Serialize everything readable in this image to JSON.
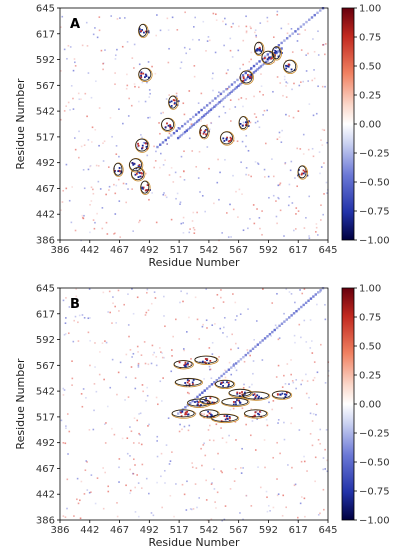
{
  "chart_data": [
    {
      "type": "heatmap",
      "panel_label": "A",
      "xlabel": "Residue Number",
      "ylabel": "Residue Number",
      "xlim": [
        386,
        645
      ],
      "ylim": [
        386,
        645
      ],
      "x_ticks": [
        "386",
        "442",
        "467",
        "492",
        "517",
        "542",
        "567",
        "592",
        "617",
        "645"
      ],
      "y_ticks": [
        "386",
        "442",
        "467",
        "492",
        "517",
        "542",
        "567",
        "592",
        "617",
        "645"
      ],
      "colorbar": {
        "min": -1.0,
        "max": 1.0,
        "ticks": [
          "1.00",
          "0.75",
          "0.50",
          "0.25",
          "0.00",
          "−0.25",
          "−0.50",
          "−0.75",
          "−1.00"
        ],
        "colors": [
          "#8b0000",
          "#e23b2a",
          "#f7b6a0",
          "#ffffff",
          "#a8b4e8",
          "#3645c8",
          "#00005a"
        ]
      },
      "diagonal_bands": [
        {
          "x0": 480,
          "y0": 490,
          "x1": 640,
          "y1": 645,
          "sign": "negative"
        },
        {
          "x0": 500,
          "y0": 500,
          "x1": 600,
          "y1": 600,
          "sign": "negative"
        }
      ],
      "highlighted_regions": [
        {
          "x": 466,
          "y": 620
        },
        {
          "x": 468,
          "y": 571
        },
        {
          "x": 495,
          "y": 540
        },
        {
          "x": 490,
          "y": 515
        },
        {
          "x": 525,
          "y": 507
        },
        {
          "x": 547,
          "y": 500
        },
        {
          "x": 563,
          "y": 517
        },
        {
          "x": 566,
          "y": 568
        },
        {
          "x": 578,
          "y": 600
        },
        {
          "x": 587,
          "y": 590
        },
        {
          "x": 595,
          "y": 595
        },
        {
          "x": 608,
          "y": 580
        },
        {
          "x": 442,
          "y": 465
        },
        {
          "x": 461,
          "y": 460
        },
        {
          "x": 468,
          "y": 445
        },
        {
          "x": 465,
          "y": 492
        },
        {
          "x": 620,
          "y": 462
        },
        {
          "x": 459,
          "y": 470
        }
      ]
    },
    {
      "type": "heatmap",
      "panel_label": "B",
      "xlabel": "Residue Number",
      "ylabel": "Residue Number",
      "xlim": [
        386,
        645
      ],
      "ylim": [
        386,
        645
      ],
      "x_ticks": [
        "386",
        "442",
        "467",
        "492",
        "517",
        "542",
        "567",
        "592",
        "617",
        "645"
      ],
      "y_ticks": [
        "386",
        "442",
        "467",
        "492",
        "517",
        "542",
        "567",
        "592",
        "617",
        "645"
      ],
      "colorbar": {
        "min": -1.0,
        "max": 1.0,
        "ticks": [
          "1.00",
          "0.75",
          "0.50",
          "0.25",
          "0.00",
          "−0.25",
          "−0.50",
          "−0.75",
          "−1.00"
        ],
        "colors": [
          "#8b0000",
          "#e23b2a",
          "#f7b6a0",
          "#ffffff",
          "#a8b4e8",
          "#3645c8",
          "#00005a"
        ]
      },
      "diagonal_bands": [
        {
          "x0": 500,
          "y0": 505,
          "x1": 640,
          "y1": 645,
          "sign": "negative"
        }
      ],
      "highlighted_regions": [
        {
          "x": 505,
          "y": 560
        },
        {
          "x": 527,
          "y": 565
        },
        {
          "x": 510,
          "y": 540
        },
        {
          "x": 545,
          "y": 538
        },
        {
          "x": 560,
          "y": 528
        },
        {
          "x": 575,
          "y": 525
        },
        {
          "x": 600,
          "y": 526
        },
        {
          "x": 520,
          "y": 517
        },
        {
          "x": 555,
          "y": 518
        },
        {
          "x": 530,
          "y": 520
        },
        {
          "x": 505,
          "y": 505
        },
        {
          "x": 545,
          "y": 500
        },
        {
          "x": 530,
          "y": 505
        },
        {
          "x": 575,
          "y": 505
        }
      ]
    }
  ]
}
